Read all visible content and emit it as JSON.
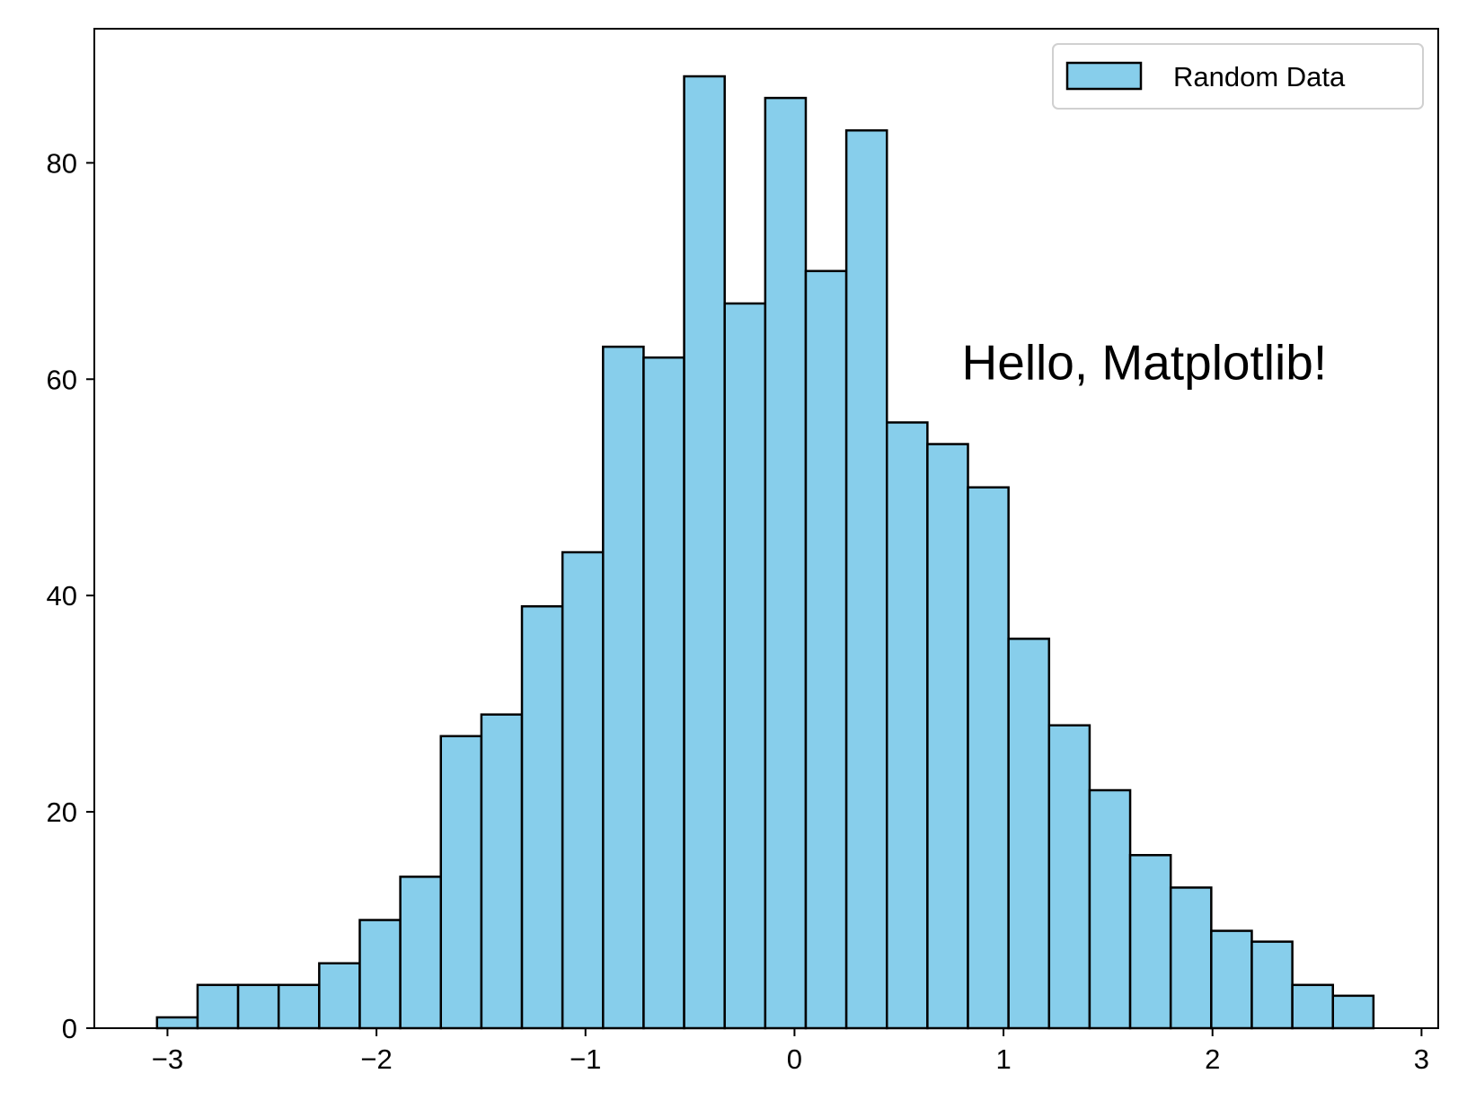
{
  "chart_data": {
    "type": "bar",
    "subtype": "histogram",
    "title": "",
    "xlabel": "",
    "ylabel": "",
    "bins": [
      {
        "x0": -3.05,
        "x1": -2.856,
        "count": 1
      },
      {
        "x0": -2.856,
        "x1": -2.662,
        "count": 4
      },
      {
        "x0": -2.662,
        "x1": -2.468,
        "count": 4
      },
      {
        "x0": -2.468,
        "x1": -2.274,
        "count": 4
      },
      {
        "x0": -2.274,
        "x1": -2.08,
        "count": 6
      },
      {
        "x0": -2.08,
        "x1": -1.886,
        "count": 10
      },
      {
        "x0": -1.886,
        "x1": -1.692,
        "count": 14
      },
      {
        "x0": -1.692,
        "x1": -1.498,
        "count": 27
      },
      {
        "x0": -1.498,
        "x1": -1.304,
        "count": 29
      },
      {
        "x0": -1.304,
        "x1": -1.11,
        "count": 39
      },
      {
        "x0": -1.11,
        "x1": -0.916,
        "count": 44
      },
      {
        "x0": -0.916,
        "x1": -0.722,
        "count": 63
      },
      {
        "x0": -0.722,
        "x1": -0.528,
        "count": 62
      },
      {
        "x0": -0.528,
        "x1": -0.334,
        "count": 88
      },
      {
        "x0": -0.334,
        "x1": -0.14,
        "count": 67
      },
      {
        "x0": -0.14,
        "x1": 0.054,
        "count": 86
      },
      {
        "x0": 0.054,
        "x1": 0.248,
        "count": 70
      },
      {
        "x0": 0.248,
        "x1": 0.442,
        "count": 83
      },
      {
        "x0": 0.442,
        "x1": 0.636,
        "count": 56
      },
      {
        "x0": 0.636,
        "x1": 0.83,
        "count": 54
      },
      {
        "x0": 0.83,
        "x1": 1.024,
        "count": 50
      },
      {
        "x0": 1.024,
        "x1": 1.218,
        "count": 36
      },
      {
        "x0": 1.218,
        "x1": 1.412,
        "count": 28
      },
      {
        "x0": 1.412,
        "x1": 1.606,
        "count": 22
      },
      {
        "x0": 1.606,
        "x1": 1.8,
        "count": 16
      },
      {
        "x0": 1.8,
        "x1": 1.994,
        "count": 13
      },
      {
        "x0": 1.994,
        "x1": 2.188,
        "count": 9
      },
      {
        "x0": 2.188,
        "x1": 2.382,
        "count": 8
      },
      {
        "x0": 2.382,
        "x1": 2.576,
        "count": 4
      },
      {
        "x0": 2.576,
        "x1": 2.77,
        "count": 3
      }
    ],
    "xlim": [
      -3.35,
      3.08
    ],
    "ylim": [
      0,
      92.4
    ],
    "xticks": [
      -3,
      -2,
      -1,
      0,
      1,
      2,
      3
    ],
    "xtick_labels": [
      "−3",
      "−2",
      "−1",
      "0",
      "1",
      "2",
      "3"
    ],
    "yticks": [
      0,
      20,
      40,
      60,
      80
    ],
    "ytick_labels": [
      "0",
      "20",
      "40",
      "60",
      "80"
    ],
    "series": [
      {
        "name": "Random Data",
        "color": "#87CEEB",
        "edgecolor": "#000000"
      }
    ],
    "legend": {
      "position": "top-right"
    },
    "grid": false,
    "annotation": {
      "text": "Hello, Matplotlib!",
      "x": 0.8,
      "y": 60
    }
  }
}
